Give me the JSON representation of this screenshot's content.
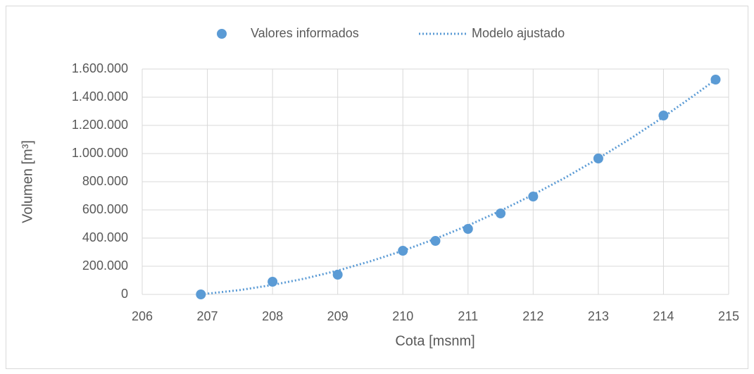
{
  "chart_data": {
    "type": "scatter",
    "xlabel": "Cota [msnm]",
    "ylabel": "Volumen [m³]",
    "xlim": [
      206,
      215
    ],
    "xticks": [
      206,
      207,
      208,
      209,
      210,
      211,
      212,
      213,
      214,
      215
    ],
    "ylim": [
      0,
      1600000
    ],
    "yticks": [
      0,
      {
        "value": 200000,
        "label": "200.000"
      },
      {
        "value": 400000,
        "label": "400.000"
      },
      {
        "value": 600000,
        "label": "600.000"
      },
      {
        "value": 800000,
        "label": "800.000"
      },
      {
        "value": 1000000,
        "label": "1.000.000"
      },
      {
        "value": 1200000,
        "label": "1.200.000"
      },
      {
        "value": 1400000,
        "label": "1.400.000"
      },
      {
        "value": 1600000,
        "label": "1.600.000"
      }
    ],
    "grid": true,
    "legend": "top",
    "series": [
      {
        "name": "Valores informados",
        "color": "#5b9bd5",
        "mode": "markers",
        "x": [
          206.9,
          208,
          209,
          210,
          210.5,
          211,
          211.5,
          212,
          213,
          214,
          214.8
        ],
        "values": [
          0,
          90000,
          140000,
          310000,
          380000,
          465000,
          575000,
          695000,
          965000,
          1270000,
          1525000
        ]
      },
      {
        "name": "Modelo ajustado",
        "color": "#5b9bd5",
        "mode": "dotted-line",
        "x": [
          206.9,
          207.5,
          208,
          208.5,
          209,
          209.5,
          210,
          210.5,
          211,
          211.5,
          212,
          212.5,
          213,
          213.5,
          214,
          214.5,
          214.8
        ],
        "values": [
          0,
          31000,
          67000,
          113000,
          169000,
          235000,
          310000,
          395000,
          489000,
          594000,
          708000,
          831000,
          965000,
          1108000,
          1260000,
          1423000,
          1525000
        ]
      }
    ]
  }
}
